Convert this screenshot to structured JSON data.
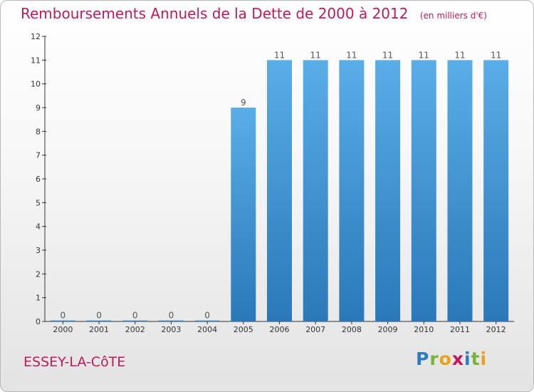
{
  "header": {
    "title": "Remboursements Annuels de la Dette de 2000 à 2012",
    "unit": "(en milliers d'€)"
  },
  "footer": {
    "place": "ESSEY-LA-CôTE",
    "logo_text": "Proxiti",
    "logo_letters": [
      {
        "ch": "P",
        "color": "#2e7bc4"
      },
      {
        "ch": "r",
        "color": "#7ab33a"
      },
      {
        "ch": "o",
        "color": "#e8a21a"
      },
      {
        "ch": "x",
        "color": "#c2185b"
      },
      {
        "ch": "i",
        "color": "#2e7bc4"
      },
      {
        "ch": "t",
        "color": "#7ab33a"
      },
      {
        "ch": "i",
        "color": "#e8a21a"
      }
    ]
  },
  "colors": {
    "bar_top": "#5aaee8",
    "bar_bottom": "#2a78b8",
    "accent": "#c2185b"
  },
  "chart_data": {
    "type": "bar",
    "title": "Remboursements Annuels de la Dette de 2000 à 2012",
    "xlabel": "",
    "ylabel": "",
    "categories": [
      "2000",
      "2001",
      "2002",
      "2003",
      "2004",
      "2005",
      "2006",
      "2007",
      "2008",
      "2009",
      "2010",
      "2011",
      "2012"
    ],
    "values": [
      0,
      0,
      0,
      0,
      0,
      9,
      11,
      11,
      11,
      11,
      11,
      11,
      11
    ],
    "ylim": [
      0,
      12
    ],
    "yticks": [
      0,
      1,
      2,
      3,
      4,
      5,
      6,
      7,
      8,
      9,
      10,
      11,
      12
    ],
    "grid": false,
    "data_labels": true
  }
}
